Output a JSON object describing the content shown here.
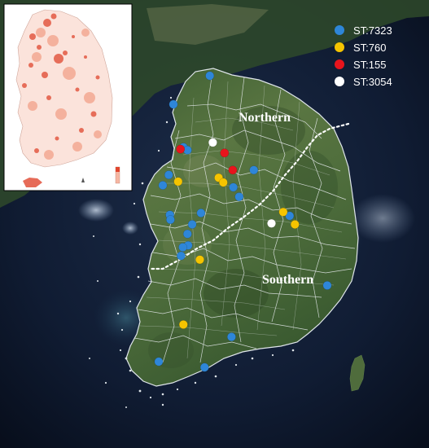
{
  "legend": {
    "items": [
      {
        "label": "ST:7323",
        "color": "#2e86d8"
      },
      {
        "label": "ST:760",
        "color": "#f5c400"
      },
      {
        "label": "ST:155",
        "color": "#e8141c"
      },
      {
        "label": "ST:3054",
        "color": "#ffffff"
      }
    ]
  },
  "regions": {
    "northern": "Northern",
    "southern": "Southern"
  },
  "colors": {
    "sea": "#0d1a2e",
    "land": "#4b6a3a",
    "boundary": "#e8ecef",
    "inset_land": "#fbe3db",
    "inset_hot": "#e0462e"
  },
  "isolates": [
    {
      "type": "ST:7323",
      "lon": 127.4,
      "lat": 38.05
    },
    {
      "type": "ST:7323",
      "lon": 126.78,
      "lat": 37.75
    },
    {
      "type": "ST:7323",
      "lon": 126.95,
      "lat": 37.3
    },
    {
      "type": "ST:7323",
      "lon": 127.02,
      "lat": 37.27
    },
    {
      "type": "ST:7323",
      "lon": 128.15,
      "lat": 37.06
    },
    {
      "type": "ST:7323",
      "lon": 126.7,
      "lat": 37.01
    },
    {
      "type": "ST:7323",
      "lon": 126.6,
      "lat": 36.9
    },
    {
      "type": "ST:7323",
      "lon": 127.8,
      "lat": 36.88
    },
    {
      "type": "ST:7323",
      "lon": 127.9,
      "lat": 36.78
    },
    {
      "type": "ST:7323",
      "lon": 127.25,
      "lat": 36.61
    },
    {
      "type": "ST:7323",
      "lon": 126.72,
      "lat": 36.59
    },
    {
      "type": "ST:7323",
      "lon": 126.73,
      "lat": 36.54
    },
    {
      "type": "ST:7323",
      "lon": 127.1,
      "lat": 36.49
    },
    {
      "type": "ST:7323",
      "lon": 127.02,
      "lat": 36.39
    },
    {
      "type": "ST:7323",
      "lon": 127.03,
      "lat": 36.27
    },
    {
      "type": "ST:7323",
      "lon": 126.94,
      "lat": 36.25
    },
    {
      "type": "ST:7323",
      "lon": 126.91,
      "lat": 36.16
    },
    {
      "type": "ST:7323",
      "lon": 128.76,
      "lat": 36.58
    },
    {
      "type": "ST:7323",
      "lon": 129.4,
      "lat": 35.85
    },
    {
      "type": "ST:7323",
      "lon": 127.77,
      "lat": 35.31
    },
    {
      "type": "ST:7323",
      "lon": 126.53,
      "lat": 35.05
    },
    {
      "type": "ST:7323",
      "lon": 127.31,
      "lat": 34.99
    },
    {
      "type": "ST:760",
      "lon": 126.86,
      "lat": 36.94
    },
    {
      "type": "ST:760",
      "lon": 127.55,
      "lat": 36.98
    },
    {
      "type": "ST:760",
      "lon": 127.63,
      "lat": 36.93
    },
    {
      "type": "ST:760",
      "lon": 128.65,
      "lat": 36.62
    },
    {
      "type": "ST:760",
      "lon": 128.85,
      "lat": 36.49
    },
    {
      "type": "ST:760",
      "lon": 127.23,
      "lat": 36.12
    },
    {
      "type": "ST:760",
      "lon": 126.95,
      "lat": 35.44
    },
    {
      "type": "ST:155",
      "lon": 126.9,
      "lat": 37.28
    },
    {
      "type": "ST:155",
      "lon": 127.65,
      "lat": 37.24
    },
    {
      "type": "ST:155",
      "lon": 127.79,
      "lat": 37.06
    },
    {
      "type": "ST:3054",
      "lon": 127.45,
      "lat": 37.35
    },
    {
      "type": "ST:3054",
      "lon": 128.45,
      "lat": 36.5
    }
  ]
}
